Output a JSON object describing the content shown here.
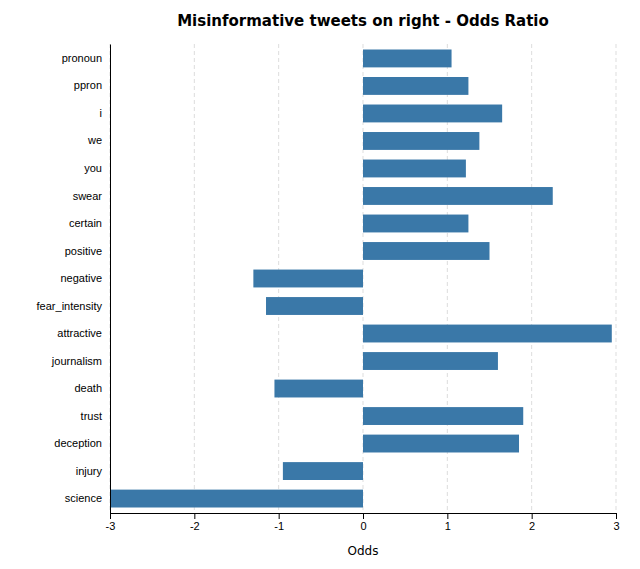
{
  "chart_data": {
    "type": "bar",
    "orientation": "horizontal",
    "title": "Misinformative tweets on right - Odds Ratio",
    "xlabel": "Odds",
    "categories": [
      "pronoun",
      "ppron",
      "i",
      "we",
      "you",
      "swear",
      "certain",
      "positive",
      "negative",
      "fear_intensity",
      "attractive",
      "journalism",
      "death",
      "trust",
      "deception",
      "injury",
      "science"
    ],
    "values": [
      1.05,
      1.25,
      1.65,
      1.38,
      1.22,
      2.25,
      1.25,
      1.5,
      -1.3,
      -1.15,
      2.95,
      1.6,
      -1.05,
      1.9,
      1.85,
      -0.95,
      -3.0
    ],
    "color": "#3a78a8",
    "xlim": [
      -3,
      3
    ],
    "xticks": [
      -3,
      -2,
      -1,
      0,
      1,
      2,
      3
    ],
    "grid": true
  }
}
